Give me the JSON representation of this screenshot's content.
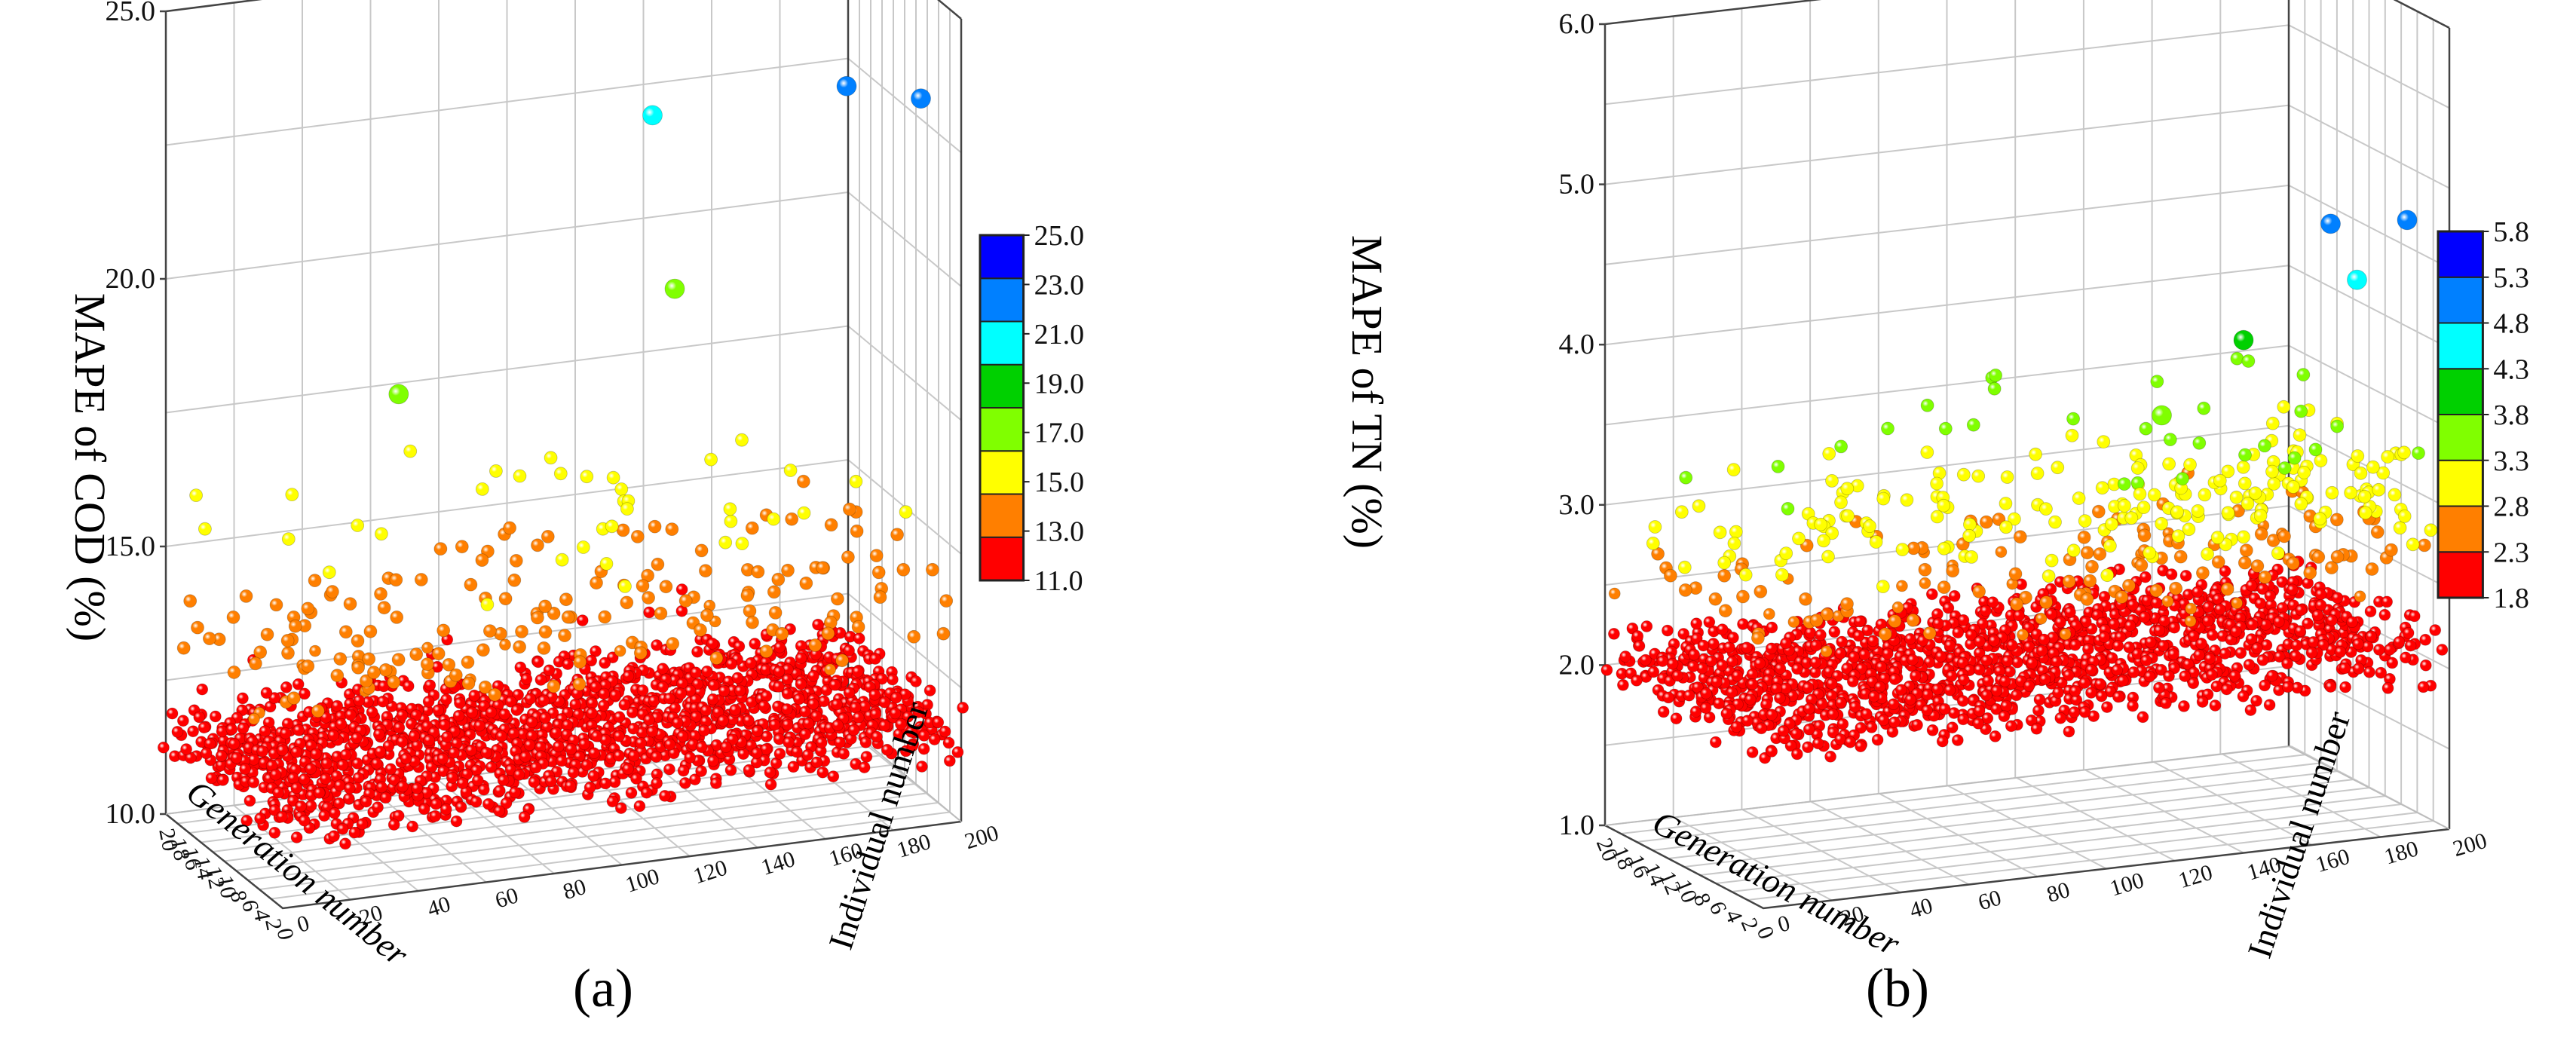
{
  "panels": [
    {
      "id": "a",
      "caption": "(a)",
      "zlabel": "MAPE of COD (%)",
      "xlabel": "Generation number",
      "ylabel": "Individual number",
      "ztick_labels": [
        "10.0",
        "15.0",
        "20.0",
        "25.0"
      ],
      "xtick_labels": [
        "0",
        "2",
        "4",
        "6",
        "8",
        "10",
        "12",
        "14",
        "16",
        "18",
        "20"
      ],
      "ytick_labels": [
        "0",
        "20",
        "40",
        "60",
        "80",
        "100",
        "120",
        "140",
        "160",
        "180",
        "200"
      ],
      "colorbar_labels": [
        "25.0",
        "23.0",
        "21.0",
        "19.0",
        "17.0",
        "15.0",
        "13.0",
        "11.0"
      ]
    },
    {
      "id": "b",
      "caption": "(b)",
      "zlabel": "MAPE of TN (%)",
      "xlabel": "Generation number",
      "ylabel": "Individual number",
      "ztick_labels": [
        "1.0",
        "2.0",
        "3.0",
        "4.0",
        "5.0",
        "6.0"
      ],
      "xtick_labels": [
        "0",
        "2",
        "4",
        "6",
        "8",
        "10",
        "12",
        "14",
        "16",
        "18",
        "20"
      ],
      "ytick_labels": [
        "0",
        "20",
        "40",
        "60",
        "80",
        "100",
        "120",
        "140",
        "160",
        "180",
        "200"
      ],
      "colorbar_labels": [
        "5.8",
        "5.3",
        "4.8",
        "4.3",
        "3.8",
        "3.3",
        "2.8",
        "2.3",
        "1.8"
      ]
    }
  ],
  "chart_data": [
    {
      "type": "scatter",
      "subtype": "3d-scatter",
      "xlabel": "Generation number",
      "ylabel": "Individual number",
      "zlabel": "MAPE of COD (%)",
      "xlim": [
        0,
        20
      ],
      "ylim": [
        0,
        200
      ],
      "zlim": [
        10,
        25
      ],
      "colorbar": {
        "levels": [
          11.0,
          13.0,
          15.0,
          17.0,
          19.0,
          21.0,
          23.0,
          25.0
        ],
        "colors": [
          "#ff0000",
          "#ff7f00",
          "#ffff00",
          "#80ff00",
          "#00d000",
          "#00ffff",
          "#0080ff",
          "#0000ff"
        ]
      },
      "baseline_mape": 11.6,
      "notable_points": [
        {
          "generation": 18,
          "individual": 140,
          "mape": 22.1
        },
        {
          "generation": 8,
          "individual": 180,
          "mape": 23.2
        },
        {
          "generation": 4,
          "individual": 195,
          "mape": 23.2
        },
        {
          "generation": 15,
          "individual": 60,
          "mape": 17.8
        },
        {
          "generation": 20,
          "individual": 150,
          "mape": 18.6
        }
      ],
      "grid": true
    },
    {
      "type": "scatter",
      "subtype": "3d-scatter",
      "xlabel": "Generation number",
      "ylabel": "Individual number",
      "zlabel": "MAPE of TN (%)",
      "xlim": [
        0,
        20
      ],
      "ylim": [
        0,
        200
      ],
      "zlim": [
        1,
        6
      ],
      "colorbar": {
        "levels": [
          1.8,
          2.3,
          2.8,
          3.3,
          3.8,
          4.3,
          4.8,
          5.3,
          5.8
        ],
        "colors": [
          "#ff0000",
          "#ff7f00",
          "#ffff00",
          "#80ff00",
          "#00d000",
          "#00ffff",
          "#0080ff",
          "#0000ff"
        ]
      },
      "baseline_mape": 2.05,
      "notable_points": [
        {
          "generation": 1,
          "individual": 190,
          "mape": 4.8
        },
        {
          "generation": 2,
          "individual": 170,
          "mape": 4.8
        },
        {
          "generation": 3,
          "individual": 180,
          "mape": 4.4
        },
        {
          "generation": 0,
          "individual": 140,
          "mape": 4.2
        },
        {
          "generation": 6,
          "individual": 130,
          "mape": 3.6
        }
      ],
      "grid": true
    }
  ]
}
